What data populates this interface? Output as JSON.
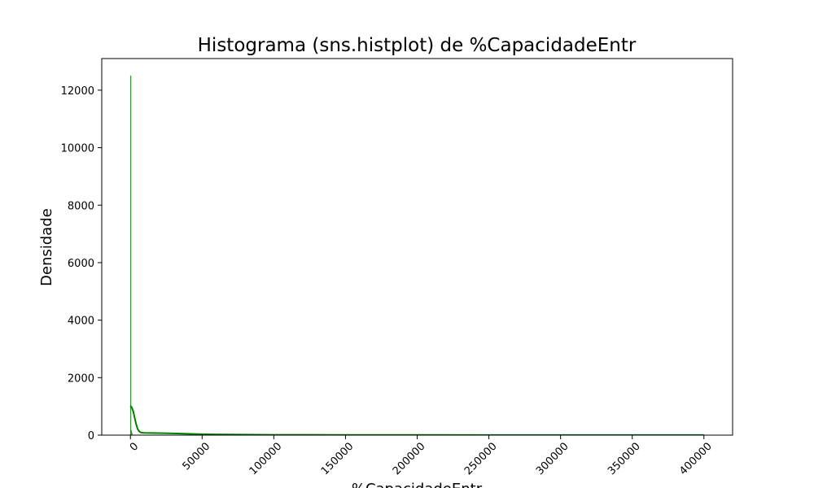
{
  "chart_data": {
    "type": "histogram",
    "title": "Histograma (sns.histplot) de %CapacidadeEntr",
    "xlabel": "%CapacidadeEntr",
    "ylabel": "Densidade",
    "xlim": [
      -20000,
      420000
    ],
    "ylim": [
      0,
      13100
    ],
    "x_ticks": [
      0,
      50000,
      100000,
      150000,
      200000,
      250000,
      300000,
      350000,
      400000
    ],
    "x_tick_labels": [
      "0",
      "50000",
      "100000",
      "150000",
      "200000",
      "250000",
      "300000",
      "350000",
      "400000"
    ],
    "y_ticks": [
      0,
      2000,
      4000,
      6000,
      8000,
      10000,
      12000
    ],
    "y_tick_labels": [
      "0",
      "2000",
      "4000",
      "6000",
      "8000",
      "10000",
      "12000"
    ],
    "grid": false,
    "series": [
      {
        "kind": "histogram-bars",
        "color": "#2e8b2e",
        "bins": [
          {
            "x0": 0,
            "x1": 400,
            "count": 12500
          },
          {
            "x0": 400,
            "x1": 800,
            "count": 160
          },
          {
            "x0": 800,
            "x1": 1200,
            "count": 80
          }
        ]
      },
      {
        "kind": "kde",
        "color": "#008000",
        "x": [
          0,
          1000,
          2000,
          3000,
          4000,
          5000,
          6000,
          7000,
          8000,
          9000,
          10000,
          15000,
          20000,
          30000,
          40000,
          50000,
          60000,
          80000,
          100000,
          150000,
          200000,
          250000,
          300000,
          350000,
          400000
        ],
        "y": [
          1020,
          960,
          820,
          600,
          380,
          220,
          140,
          100,
          85,
          80,
          78,
          74,
          70,
          60,
          46,
          32,
          24,
          16,
          12,
          8,
          6,
          5,
          4,
          3,
          2
        ]
      }
    ]
  }
}
